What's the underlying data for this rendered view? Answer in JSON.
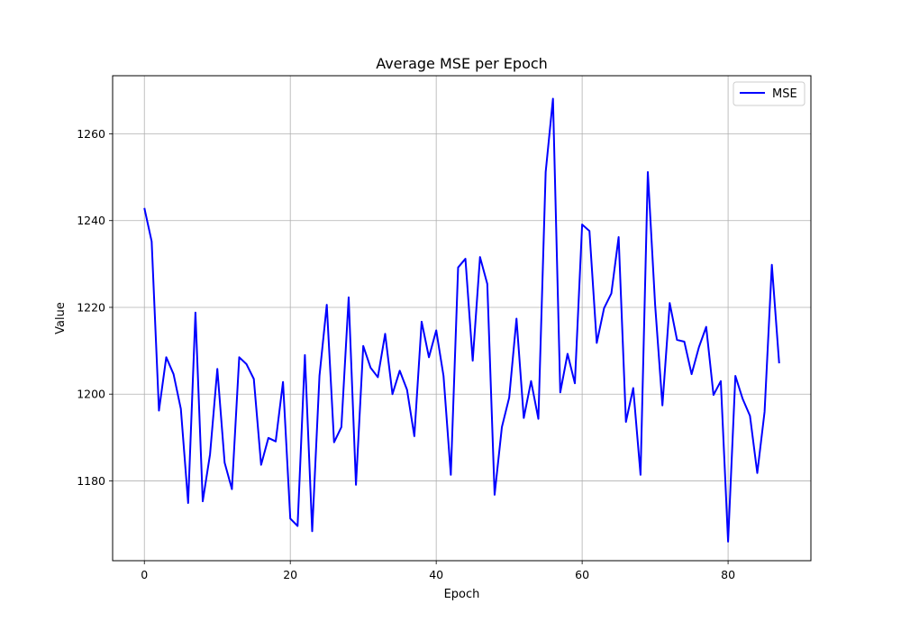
{
  "chart_data": {
    "type": "line",
    "title": "Average MSE per Epoch",
    "xlabel": "Epoch",
    "ylabel": "Value",
    "xlim": [
      -4.35,
      91.35
    ],
    "ylim": [
      1161.6,
      1273.4
    ],
    "x_ticks": [
      0,
      20,
      40,
      60,
      80
    ],
    "y_ticks": [
      1180,
      1200,
      1220,
      1240,
      1260
    ],
    "grid": true,
    "legend_position": "top-right",
    "series": [
      {
        "name": "MSE",
        "color": "#0000ff",
        "x": [
          0,
          1,
          2,
          3,
          4,
          5,
          6,
          7,
          8,
          9,
          10,
          11,
          12,
          13,
          14,
          15,
          16,
          17,
          18,
          19,
          20,
          21,
          22,
          23,
          24,
          25,
          26,
          27,
          28,
          29,
          30,
          31,
          32,
          33,
          34,
          35,
          36,
          37,
          38,
          39,
          40,
          41,
          42,
          43,
          44,
          45,
          46,
          47,
          48,
          49,
          50,
          51,
          52,
          53,
          54,
          55,
          56,
          57,
          58,
          59,
          60,
          61,
          62,
          63,
          64,
          65,
          66,
          67,
          68,
          69,
          70,
          71,
          72,
          73,
          74,
          75,
          76,
          77,
          78,
          79,
          80,
          81,
          82,
          83,
          84,
          85,
          86,
          87
        ],
        "values": [
          1242.9,
          1235.2,
          1196.2,
          1208.5,
          1204.6,
          1196.6,
          1174.9,
          1218.8,
          1175.3,
          1186.1,
          1205.8,
          1184.2,
          1178.1,
          1208.5,
          1206.9,
          1203.5,
          1183.7,
          1189.9,
          1189.1,
          1202.8,
          1171.3,
          1169.6,
          1209.0,
          1168.4,
          1204.2,
          1220.6,
          1188.9,
          1192.4,
          1222.3,
          1179.1,
          1211.1,
          1206.1,
          1203.9,
          1213.9,
          1200.0,
          1205.4,
          1201.0,
          1190.3,
          1216.7,
          1208.5,
          1214.7,
          1204.2,
          1181.4,
          1229.2,
          1231.2,
          1207.7,
          1231.6,
          1225.4,
          1176.8,
          1192.4,
          1199.2,
          1217.4,
          1194.5,
          1203.0,
          1194.3,
          1251.2,
          1268.1,
          1200.4,
          1209.3,
          1202.5,
          1239.1,
          1237.6,
          1211.8,
          1219.8,
          1223.2,
          1236.2,
          1193.6,
          1201.4,
          1181.4,
          1251.2,
          1220.6,
          1197.4,
          1221.0,
          1212.5,
          1212.1,
          1204.6,
          1210.8,
          1215.5,
          1199.8,
          1203.0,
          1166.0,
          1204.2,
          1198.9,
          1195.0,
          1181.8,
          1195.9,
          1229.8,
          1207.1
        ]
      }
    ]
  }
}
